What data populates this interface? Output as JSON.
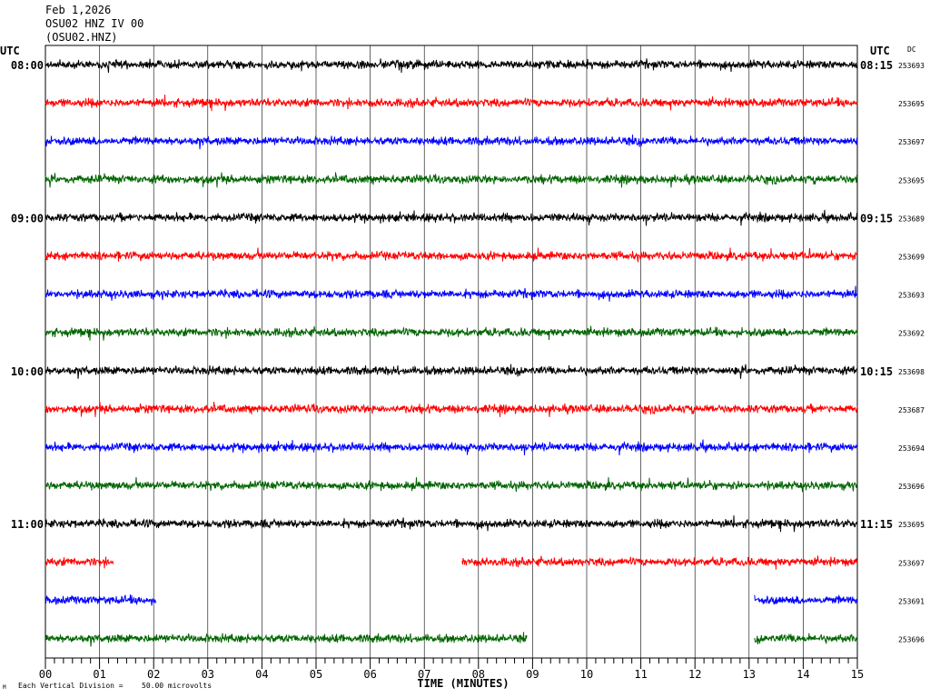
{
  "header": {
    "date": "Feb 1,2026",
    "station": "OSU02 HNZ IV 00",
    "code": "(OSU02.HNZ)"
  },
  "labels": {
    "utc_left": "UTC",
    "utc_right": "UTC",
    "dc": "DC",
    "xlabel": "TIME (MINUTES)",
    "scale_note": "Each Vertical Division =",
    "scale_value": "50.00 microvolts"
  },
  "colors": {
    "black": "#000000",
    "red": "#ff0000",
    "blue": "#0000ff",
    "green": "#006400",
    "grid": "#000000"
  },
  "chart_data": {
    "type": "line",
    "title": "",
    "xlabel": "TIME (MINUTES)",
    "ylabel": "",
    "xlim": [
      0,
      15
    ],
    "grid": true,
    "x_ticks": [
      "00",
      "01",
      "02",
      "03",
      "04",
      "05",
      "06",
      "07",
      "08",
      "09",
      "10",
      "11",
      "12",
      "13",
      "14",
      "15"
    ],
    "series": [
      {
        "left_time": "08:00",
        "right_time": "08:15",
        "dc": "253693",
        "color": "black",
        "segments": [
          [
            0,
            15
          ]
        ]
      },
      {
        "left_time": "",
        "right_time": "",
        "dc": "253695",
        "color": "red",
        "segments": [
          [
            0,
            15
          ]
        ]
      },
      {
        "left_time": "",
        "right_time": "",
        "dc": "253697",
        "color": "blue",
        "segments": [
          [
            0,
            15
          ]
        ]
      },
      {
        "left_time": "",
        "right_time": "",
        "dc": "253695",
        "color": "green",
        "segments": [
          [
            0,
            15
          ]
        ]
      },
      {
        "left_time": "09:00",
        "right_time": "09:15",
        "dc": "253689",
        "color": "black",
        "segments": [
          [
            0,
            15
          ]
        ]
      },
      {
        "left_time": "",
        "right_time": "",
        "dc": "253699",
        "color": "red",
        "segments": [
          [
            0,
            15
          ]
        ]
      },
      {
        "left_time": "",
        "right_time": "",
        "dc": "253693",
        "color": "blue",
        "segments": [
          [
            0,
            15
          ]
        ]
      },
      {
        "left_time": "",
        "right_time": "",
        "dc": "253692",
        "color": "green",
        "segments": [
          [
            0,
            15
          ]
        ]
      },
      {
        "left_time": "10:00",
        "right_time": "10:15",
        "dc": "253698",
        "color": "black",
        "segments": [
          [
            0,
            15
          ]
        ]
      },
      {
        "left_time": "",
        "right_time": "",
        "dc": "253687",
        "color": "red",
        "segments": [
          [
            0,
            15
          ]
        ]
      },
      {
        "left_time": "",
        "right_time": "",
        "dc": "253694",
        "color": "blue",
        "segments": [
          [
            0,
            15
          ]
        ]
      },
      {
        "left_time": "",
        "right_time": "",
        "dc": "253696",
        "color": "green",
        "segments": [
          [
            0,
            15
          ]
        ]
      },
      {
        "left_time": "11:00",
        "right_time": "11:15",
        "dc": "253695",
        "color": "black",
        "segments": [
          [
            0,
            15
          ]
        ]
      },
      {
        "left_time": "",
        "right_time": "",
        "dc": "253697",
        "color": "red",
        "segments": [
          [
            0,
            1.25
          ],
          [
            7.7,
            15
          ]
        ]
      },
      {
        "left_time": "",
        "right_time": "",
        "dc": "253691",
        "color": "blue",
        "segments": [
          [
            0,
            2.05
          ],
          [
            13.1,
            15
          ]
        ]
      },
      {
        "left_time": "",
        "right_time": "",
        "dc": "253696",
        "color": "green",
        "segments": [
          [
            0,
            8.9
          ],
          [
            13.1,
            15
          ]
        ]
      }
    ]
  }
}
